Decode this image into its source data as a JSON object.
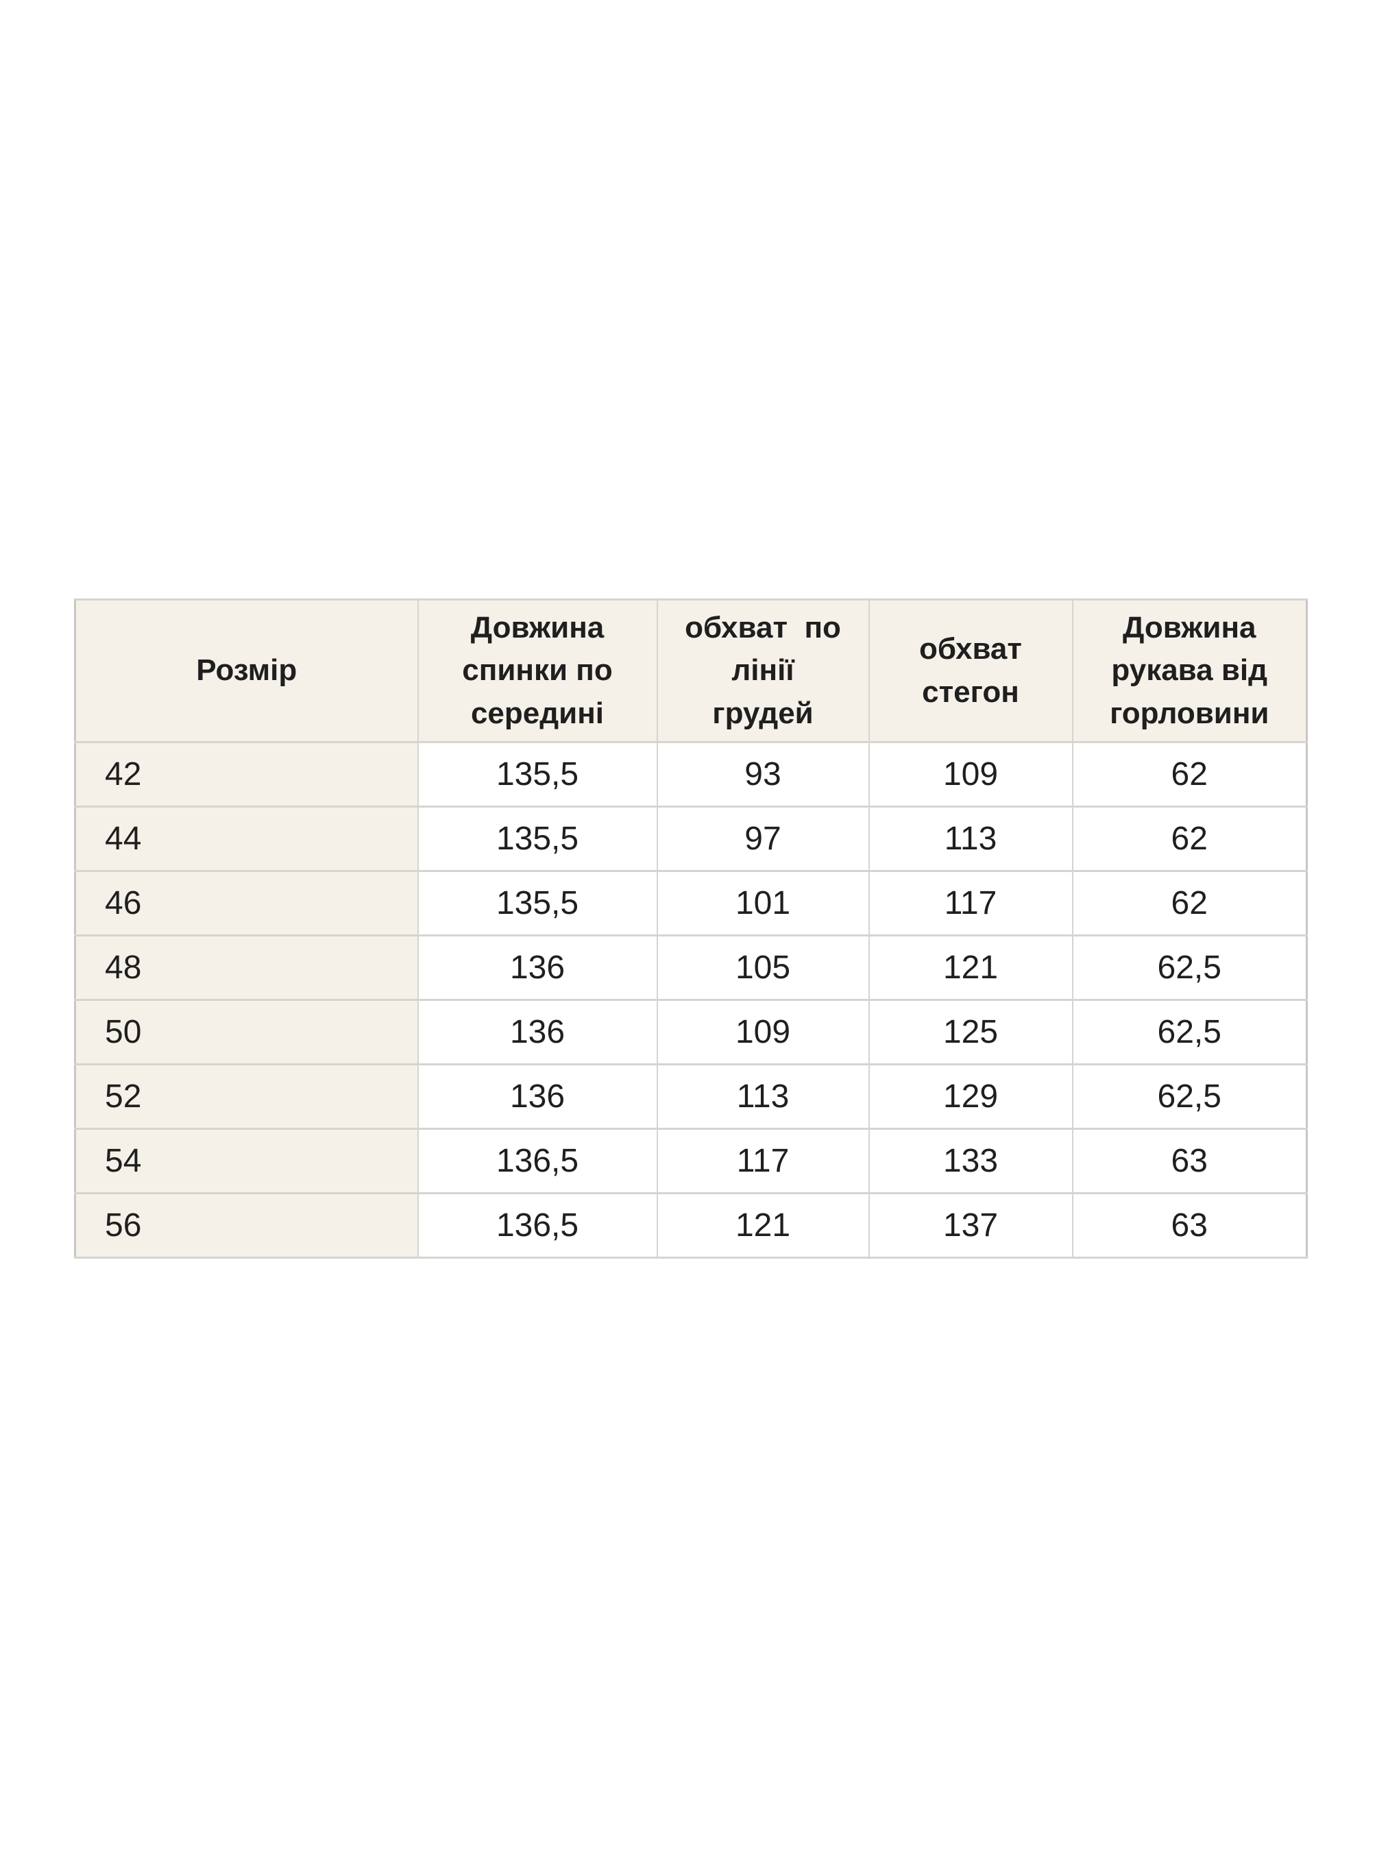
{
  "colors": {
    "page_background": "#ffffff",
    "header_and_size_column_background": "#f5f1e9",
    "grid_border": "#d5d4d0",
    "outer_border": "#c8c7c3",
    "text": "#1f1f1f"
  },
  "table": {
    "columns": [
      {
        "label": "Розмір"
      },
      {
        "label": "Довжина\nспинки по\nсередині"
      },
      {
        "label": "обхват  по\nлінії\nгрудей"
      },
      {
        "label": "обхват\nстегон"
      },
      {
        "label": "Довжина\nрукава від\nгорловини"
      }
    ],
    "rows": [
      [
        "42",
        "135,5",
        "93",
        "109",
        "62"
      ],
      [
        "44",
        "135,5",
        "97",
        "113",
        "62"
      ],
      [
        "46",
        "135,5",
        "101",
        "117",
        "62"
      ],
      [
        "48",
        "136",
        "105",
        "121",
        "62,5"
      ],
      [
        "50",
        "136",
        "109",
        "125",
        "62,5"
      ],
      [
        "52",
        "136",
        "113",
        "129",
        "62,5"
      ],
      [
        "54",
        "136,5",
        "117",
        "133",
        "63"
      ],
      [
        "56",
        "136,5",
        "121",
        "137",
        "63"
      ]
    ]
  }
}
